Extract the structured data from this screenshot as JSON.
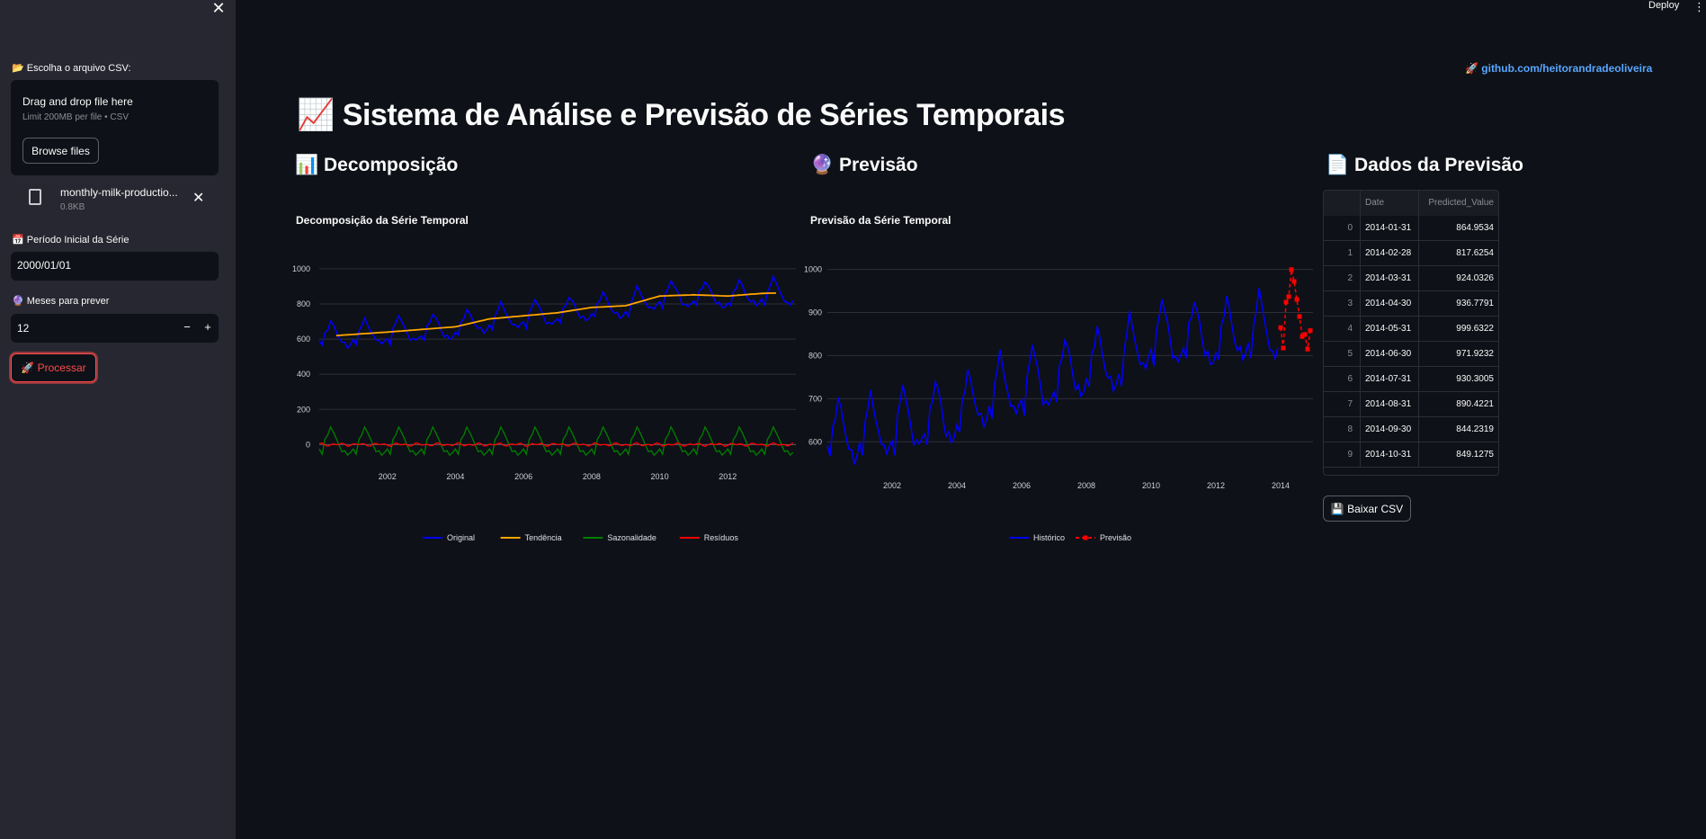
{
  "header": {
    "deploy_label": "Deploy",
    "menu_icon": "⋮"
  },
  "sidebar": {
    "close_icon": "✕",
    "csv_label": "📂 Escolha o arquivo CSV:",
    "uploader": {
      "title": "Drag and drop file here",
      "subtitle": "Limit 200MB per file • CSV",
      "browse_label": "Browse files"
    },
    "file": {
      "name": "monthly-milk-productio...",
      "size": "0.8KB",
      "remove_icon": "✕"
    },
    "start_label": "📅 Período Inicial da Série",
    "start_value": "2000/01/01",
    "months_label": "🔮 Meses para prever",
    "months_value": "12",
    "minus": "−",
    "plus": "+",
    "process_label": "🚀 Processar"
  },
  "main": {
    "github_link": "🚀 github.com/heitorandradeoliveira",
    "title": "📈 Sistema de Análise e Previsão de Séries Temporais",
    "sections": {
      "decomp": "📊 Decomposição",
      "forecast": "🔮 Previsão",
      "data": "📄 Dados da Previsão"
    },
    "download_label": "💾 Baixar CSV"
  },
  "table": {
    "headers": [
      "",
      "Date",
      "Predicted_Value"
    ],
    "rows": [
      [
        "0",
        "2014-01-31",
        "864.9534"
      ],
      [
        "1",
        "2014-02-28",
        "817.6254"
      ],
      [
        "2",
        "2014-03-31",
        "924.0326"
      ],
      [
        "3",
        "2014-04-30",
        "936.7791"
      ],
      [
        "4",
        "2014-05-31",
        "999.6322"
      ],
      [
        "5",
        "2014-06-30",
        "971.9232"
      ],
      [
        "6",
        "2014-07-31",
        "930.3005"
      ],
      [
        "7",
        "2014-08-31",
        "890.4221"
      ],
      [
        "8",
        "2014-09-30",
        "844.2319"
      ],
      [
        "9",
        "2014-10-31",
        "849.1275"
      ]
    ]
  },
  "chart_data": [
    {
      "type": "line",
      "title": "Decomposição da Série Temporal",
      "xlabel": "",
      "ylabel": "",
      "x_range": [
        "2000-01",
        "2013-12"
      ],
      "ylim": [
        -80,
        1020
      ],
      "y_ticks": [
        0,
        200,
        400,
        600,
        800,
        1000
      ],
      "x_ticks": [
        "2002",
        "2004",
        "2006",
        "2008",
        "2010",
        "2012"
      ],
      "grid": true,
      "legend": "bottom",
      "series": [
        {
          "name": "Original",
          "color": "#0000ff",
          "description": "monthly values with seasonal cycle",
          "start": 589,
          "end": 823,
          "seasonal_amp": 95
        },
        {
          "name": "Tendência",
          "color": "#ffa500",
          "points": [
            [
              "2000-07",
              620
            ],
            [
              "2002",
              640
            ],
            [
              "2004",
              670
            ],
            [
              "2005",
              715
            ],
            [
              "2007",
              750
            ],
            [
              "2008",
              780
            ],
            [
              "2009",
              790
            ],
            [
              "2010",
              845
            ],
            [
              "2011",
              852
            ],
            [
              "2012",
              845
            ],
            [
              "2013",
              860
            ],
            [
              "2013-06",
              862
            ]
          ]
        },
        {
          "name": "Sazonalidade",
          "color": "#008000",
          "min": -60,
          "max": 105
        },
        {
          "name": "Resíduos",
          "color": "#ff0000",
          "min": -15,
          "max": 20
        }
      ]
    },
    {
      "type": "line",
      "title": "Previsão da Série Temporal",
      "xlabel": "",
      "ylabel": "",
      "x_range": [
        "2000-01",
        "2014-12"
      ],
      "ylim": [
        540,
        1020
      ],
      "y_ticks": [
        600,
        700,
        800,
        900,
        1000
      ],
      "x_ticks": [
        "2002",
        "2004",
        "2006",
        "2008",
        "2010",
        "2012",
        "2014"
      ],
      "grid": true,
      "legend": "bottom",
      "series": [
        {
          "name": "Histórico",
          "color": "#0000ff"
        },
        {
          "name": "Previsão",
          "color": "#ff0000",
          "x": [
            "2014-01",
            "2014-02",
            "2014-03",
            "2014-04",
            "2014-05",
            "2014-06",
            "2014-07",
            "2014-08",
            "2014-09",
            "2014-10",
            "2014-11",
            "2014-12"
          ],
          "values": [
            864.95,
            817.63,
            924.03,
            936.78,
            999.63,
            971.92,
            930.3,
            890.42,
            844.23,
            849.13,
            815.0,
            858.0
          ]
        }
      ]
    }
  ]
}
